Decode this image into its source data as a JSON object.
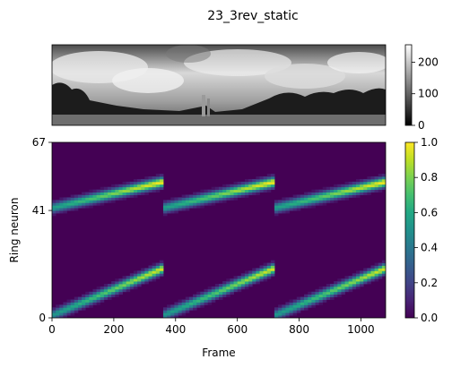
{
  "figure": {
    "title": "23_3rev_static"
  },
  "chart_data": [
    {
      "type": "image",
      "panel": "panorama",
      "description_visible": "grayscale panoramic photo",
      "colorbar": {
        "ticks": [
          0,
          100,
          200
        ],
        "range": [
          0,
          255
        ],
        "colormap": "gray"
      }
    },
    {
      "type": "heatmap",
      "panel": "ring-activity",
      "xlabel": "Frame",
      "ylabel": "Ring neuron",
      "xlim": [
        0,
        1080
      ],
      "ylim": [
        0,
        67
      ],
      "xticks": [
        0,
        200,
        400,
        600,
        800,
        1000
      ],
      "yticks": [
        0,
        41,
        67
      ],
      "colorbar": {
        "ticks": [
          0.0,
          0.2,
          0.4,
          0.6,
          0.8,
          1.0
        ],
        "range": [
          0,
          1
        ],
        "colormap": "viridis"
      },
      "bumps": [
        {
          "neuron_start": 1,
          "neuron_end": 19,
          "frame_start": 0,
          "frame_end": 360,
          "peak": 0.95
        },
        {
          "neuron_start": 1,
          "neuron_end": 19,
          "frame_start": 360,
          "frame_end": 720,
          "peak": 0.95
        },
        {
          "neuron_start": 1,
          "neuron_end": 19,
          "frame_start": 720,
          "frame_end": 1080,
          "peak": 0.95
        },
        {
          "neuron_start": 42,
          "neuron_end": 52,
          "frame_start": 0,
          "frame_end": 360,
          "peak": 1.0
        },
        {
          "neuron_start": 42,
          "neuron_end": 52,
          "frame_start": 360,
          "frame_end": 720,
          "peak": 1.0
        },
        {
          "neuron_start": 42,
          "neuron_end": 52,
          "frame_start": 720,
          "frame_end": 1080,
          "peak": 1.0
        }
      ]
    }
  ],
  "colors": {
    "viridis_low": "#440154",
    "viridis_high": "#fde725"
  }
}
